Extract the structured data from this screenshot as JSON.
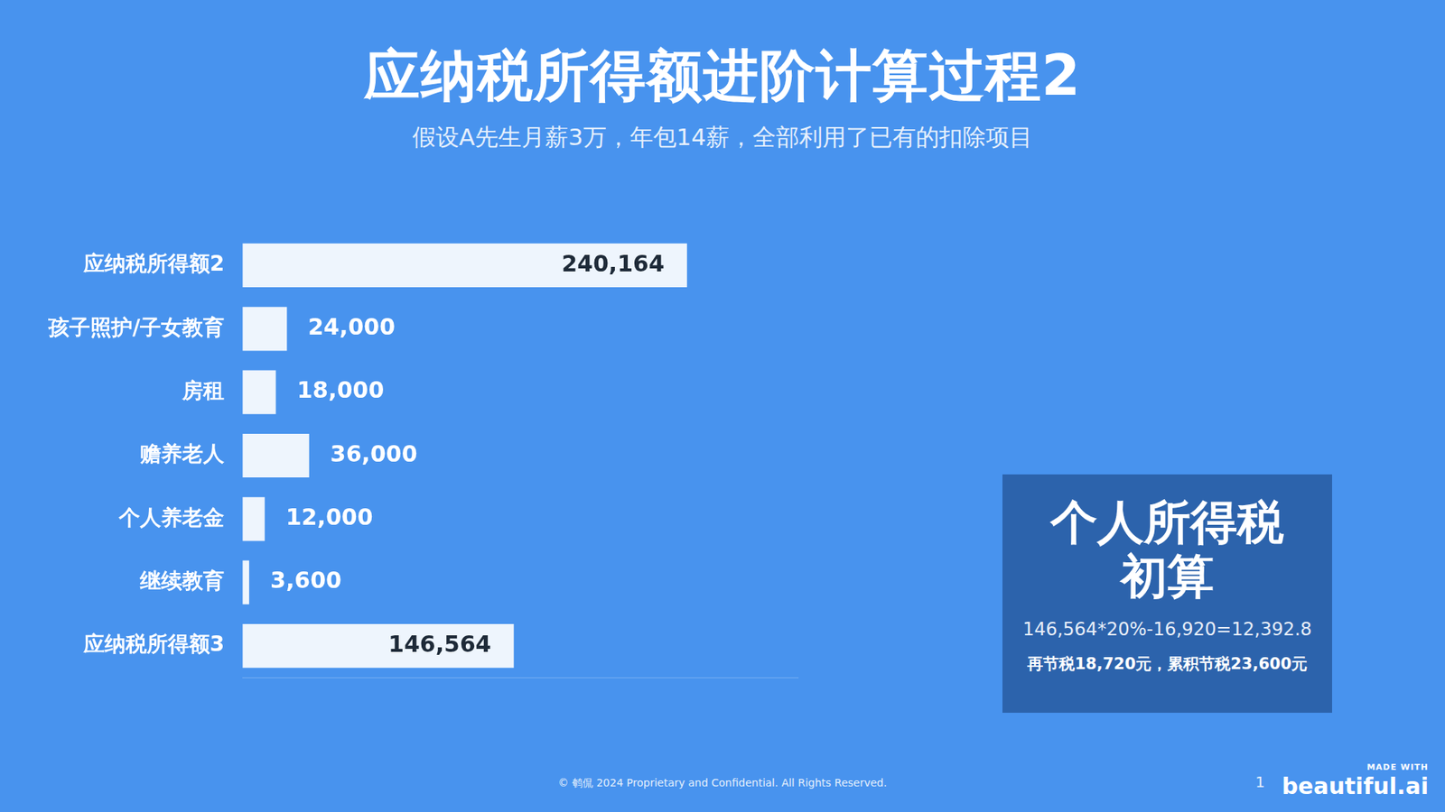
{
  "chart_data": {
    "type": "bar",
    "title": "应纳税所得额进阶计算过程2",
    "subtitle": "假设A先生月薪3万，年包14薪，全部利用了已有的扣除项目",
    "orientation": "horizontal",
    "categories": [
      "应纳税所得额2",
      "孩子照护/子女教育",
      "房租",
      "赡养老人",
      "个人养老金",
      "继续教育",
      "应纳税所得额3"
    ],
    "values": [
      240164,
      24000,
      18000,
      36000,
      12000,
      3600,
      146564
    ],
    "value_labels": [
      "240,164",
      "24,000",
      "18,000",
      "36,000",
      "12,000",
      "3,600",
      "146,564"
    ],
    "color": "#eef5fd",
    "xlim": [
      0,
      300000
    ],
    "grid": false,
    "data_labels": true,
    "tick_labels": "y"
  },
  "panel": {
    "title": [
      "个人所得税",
      "初算"
    ],
    "formula": "146,564*20%-16,920=12,392.8",
    "note": "再节税18,720元，累积节税23,600元"
  },
  "footer": {
    "copyright": "© 鹌侃 2024 Proprietary and Confidential. All Rights Reserved.",
    "page": 1,
    "made_with": "MADE WITH",
    "brand": "beautiful.ai"
  }
}
